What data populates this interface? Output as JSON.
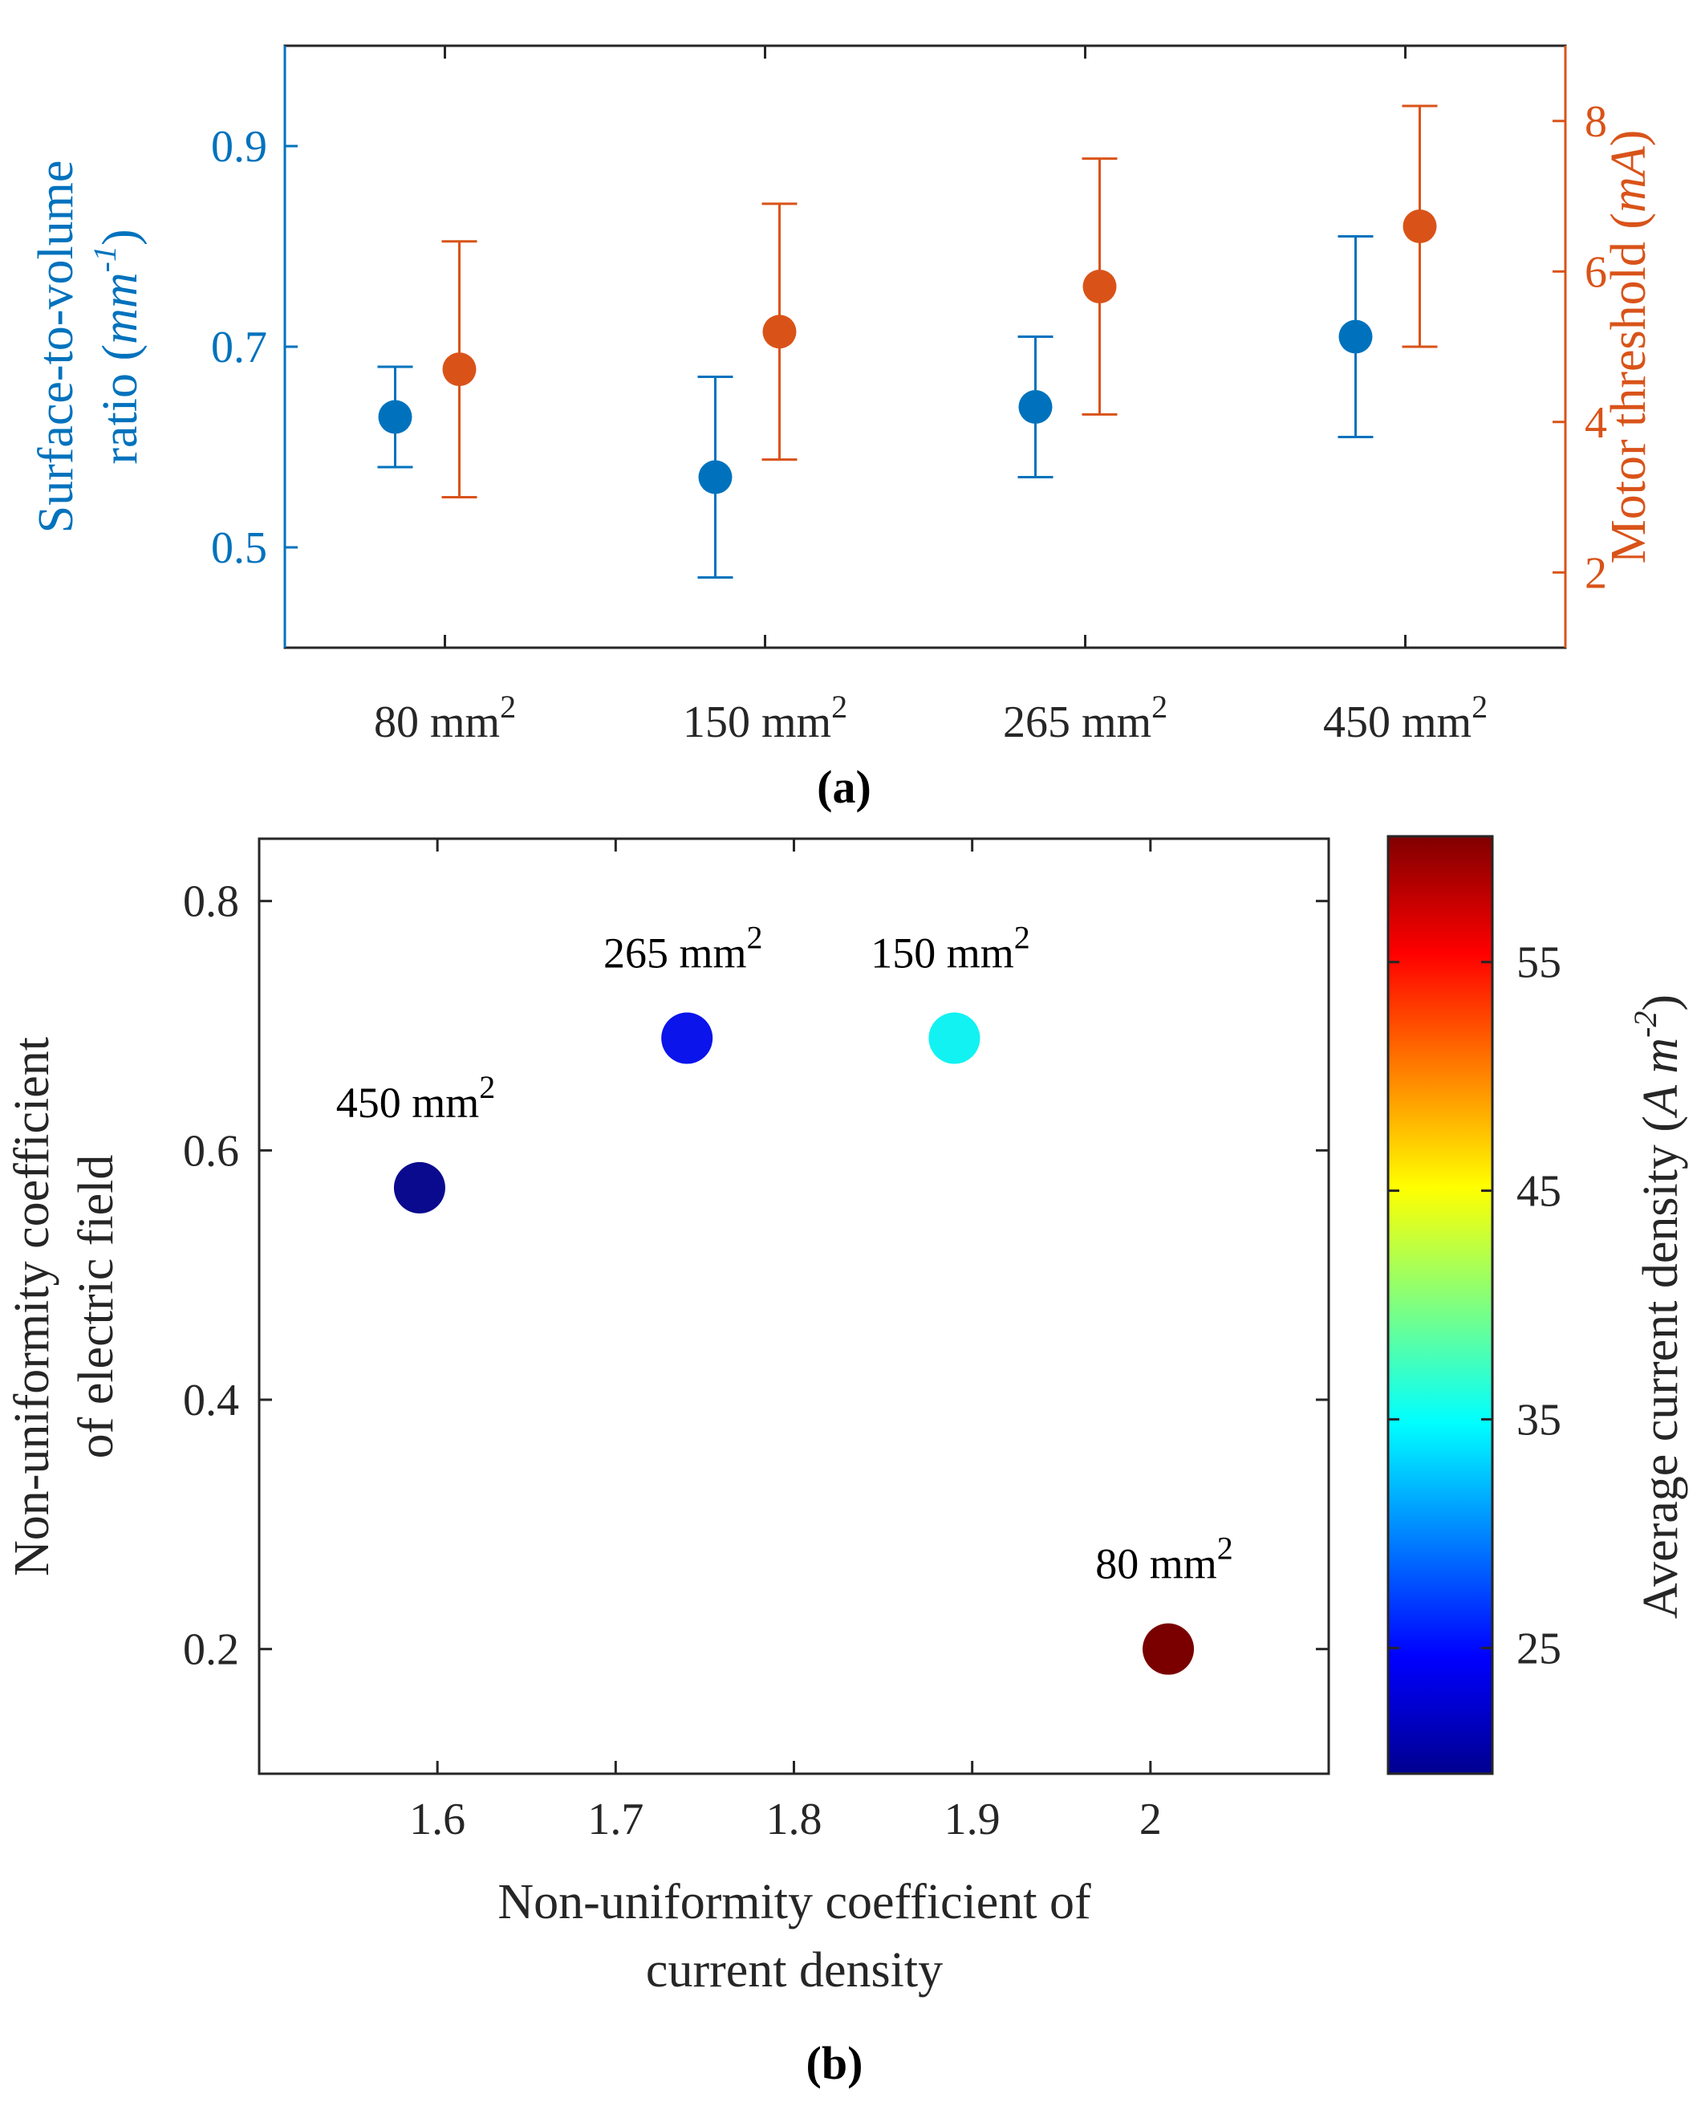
{
  "chart_data": [
    {
      "type": "scatter",
      "panel_label": "(a)",
      "categories": [
        "80 mm",
        "150 mm",
        "265 mm",
        "450 mm"
      ],
      "category_superscript": "2",
      "left_axis": {
        "label_line1": "Surface-to-volume",
        "label_line2_text": "ratio (",
        "label_line2_unit": "mm",
        "label_line2_sup": "-1",
        "label_line2_close": ")",
        "color": "#0072BD",
        "ylim": [
          0.4,
          1.0
        ],
        "ticks": [
          0.5,
          0.7,
          0.9
        ],
        "tick_labels": [
          "0.5",
          "0.7",
          "0.9"
        ]
      },
      "right_axis": {
        "label_text": "Motor threshold (",
        "label_unit": "mA",
        "label_close": ")",
        "color": "#D95319",
        "ylim": [
          1,
          9
        ],
        "ticks": [
          2,
          4,
          6,
          8
        ],
        "tick_labels": [
          "2",
          "4",
          "6",
          "8"
        ]
      },
      "series": [
        {
          "name": "Surface-to-volume ratio",
          "axis": "left",
          "color": "#0072BD",
          "values": [
            0.63,
            0.57,
            0.64,
            0.71
          ],
          "lower": [
            0.58,
            0.47,
            0.57,
            0.61
          ],
          "upper": [
            0.68,
            0.67,
            0.71,
            0.81
          ]
        },
        {
          "name": "Motor threshold",
          "axis": "right",
          "color": "#D95319",
          "values": [
            4.7,
            5.2,
            5.8,
            6.6
          ],
          "lower": [
            3.0,
            3.5,
            4.1,
            5.0
          ],
          "upper": [
            6.4,
            6.9,
            7.5,
            8.2
          ]
        }
      ]
    },
    {
      "type": "scatter",
      "panel_label": "(b)",
      "xlabel_line1": "Non-uniformity coefficient of",
      "xlabel_line2": "current density",
      "ylabel_line1": "Non-uniformity coefficient",
      "ylabel_line2": "of electric field",
      "xlim": [
        1.5,
        2.1
      ],
      "ylim": [
        0.1,
        0.85
      ],
      "xticks": [
        1.6,
        1.7,
        1.8,
        1.9,
        2.0
      ],
      "xtick_labels": [
        "1.6",
        "1.7",
        "1.8",
        "1.9",
        "2"
      ],
      "yticks": [
        0.2,
        0.4,
        0.6,
        0.8
      ],
      "ytick_labels": [
        "0.2",
        "0.4",
        "0.6",
        "0.8"
      ],
      "points": [
        {
          "label": "450 mm",
          "sup": "2",
          "x": 1.59,
          "y": 0.57,
          "color": "#0A0A8F"
        },
        {
          "label": "265 mm",
          "sup": "2",
          "x": 1.74,
          "y": 0.69,
          "color": "#0A14EB"
        },
        {
          "label": "150 mm",
          "sup": "2",
          "x": 1.89,
          "y": 0.69,
          "color": "#12F2F2"
        },
        {
          "label": "80 mm",
          "sup": "2",
          "x": 2.01,
          "y": 0.2,
          "color": "#7A0000"
        }
      ],
      "colorbar": {
        "label_text": "Average current density (",
        "label_unit": "A m",
        "label_sup": "-2",
        "label_close": ")",
        "range": [
          19.5,
          60.5
        ],
        "ticks": [
          25,
          35,
          45,
          55
        ],
        "tick_labels": [
          "25",
          "35",
          "45",
          "55"
        ],
        "colormap": "jet"
      }
    }
  ]
}
